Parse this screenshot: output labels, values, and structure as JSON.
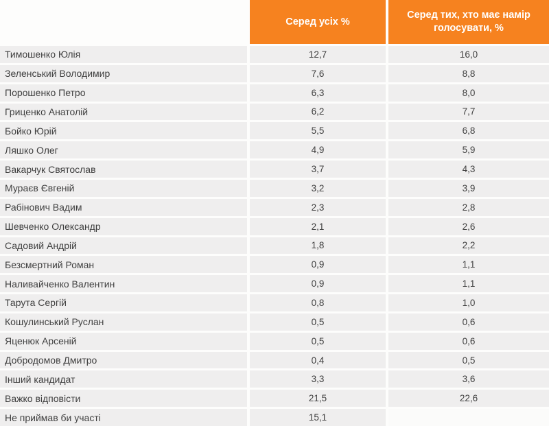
{
  "table": {
    "header": {
      "col_all": "Серед усіх %",
      "col_voters": "Серед тих, хто має намір голосувати, %"
    },
    "rows": [
      {
        "name": "Тимошенко Юлія",
        "all": "12,7",
        "voters": "16,0"
      },
      {
        "name": "Зеленський Володимир",
        "all": "7,6",
        "voters": "8,8"
      },
      {
        "name": "Порошенко Петро",
        "all": "6,3",
        "voters": "8,0"
      },
      {
        "name": "Гриценко Анатолій",
        "all": "6,2",
        "voters": "7,7"
      },
      {
        "name": "Бойко Юрій",
        "all": "5,5",
        "voters": "6,8"
      },
      {
        "name": "Ляшко Олег",
        "all": "4,9",
        "voters": "5,9"
      },
      {
        "name": "Вакарчук Святослав",
        "all": "3,7",
        "voters": "4,3"
      },
      {
        "name": "Мураєв Євгеній",
        "all": "3,2",
        "voters": "3,9"
      },
      {
        "name": "Рабінович Вадим",
        "all": "2,3",
        "voters": "2,8"
      },
      {
        "name": "Шевченко Олександр",
        "all": "2,1",
        "voters": "2,6"
      },
      {
        "name": "Садовий Андрій",
        "all": "1,8",
        "voters": "2,2"
      },
      {
        "name": "Безсмертний Роман",
        "all": "0,9",
        "voters": "1,1"
      },
      {
        "name": "Наливайченко Валентин",
        "all": "0,9",
        "voters": "1,1"
      },
      {
        "name": "Тарута Сергій",
        "all": "0,8",
        "voters": "1,0"
      },
      {
        "name": "Кошулинський Руслан",
        "all": "0,5",
        "voters": "0,6"
      },
      {
        "name": "Яценюк Арсеній",
        "all": "0,5",
        "voters": "0,6"
      },
      {
        "name": "Добродомов Дмитро",
        "all": "0,4",
        "voters": "0,5"
      },
      {
        "name": "Інший кандидат",
        "all": "3,3",
        "voters": "3,6"
      },
      {
        "name": "Важко відповісти",
        "all": "21,5",
        "voters": "22,6"
      },
      {
        "name": "Не приймав би участі",
        "all": "15,1",
        "voters": ""
      }
    ],
    "colors": {
      "header_bg": "#f6821f",
      "row_bg": "#efeeee",
      "text": "#3f3f3f",
      "header_text": "#ffffff"
    }
  },
  "chart_data": {
    "type": "table",
    "title": "",
    "categories": [
      "Тимошенко Юлія",
      "Зеленський Володимир",
      "Порошенко Петро",
      "Гриценко Анатолій",
      "Бойко Юрій",
      "Ляшко Олег",
      "Вакарчук Святослав",
      "Мураєв Євгеній",
      "Рабінович Вадим",
      "Шевченко Олександр",
      "Садовий Андрій",
      "Безсмертний Роман",
      "Наливайченко Валентин",
      "Тарута Сергій",
      "Кошулинський Руслан",
      "Яценюк Арсеній",
      "Добродомов Дмитро",
      "Інший кандидат",
      "Важко відповісти",
      "Не приймав би участі"
    ],
    "series": [
      {
        "name": "Серед усіх %",
        "values": [
          12.7,
          7.6,
          6.3,
          6.2,
          5.5,
          4.9,
          3.7,
          3.2,
          2.3,
          2.1,
          1.8,
          0.9,
          0.9,
          0.8,
          0.5,
          0.5,
          0.4,
          3.3,
          21.5,
          15.1
        ]
      },
      {
        "name": "Серед тих, хто має намір голосувати, %",
        "values": [
          16.0,
          8.8,
          8.0,
          7.7,
          6.8,
          5.9,
          4.3,
          3.9,
          2.8,
          2.6,
          2.2,
          1.1,
          1.1,
          1.0,
          0.6,
          0.6,
          0.5,
          3.6,
          22.6,
          null
        ]
      }
    ]
  }
}
